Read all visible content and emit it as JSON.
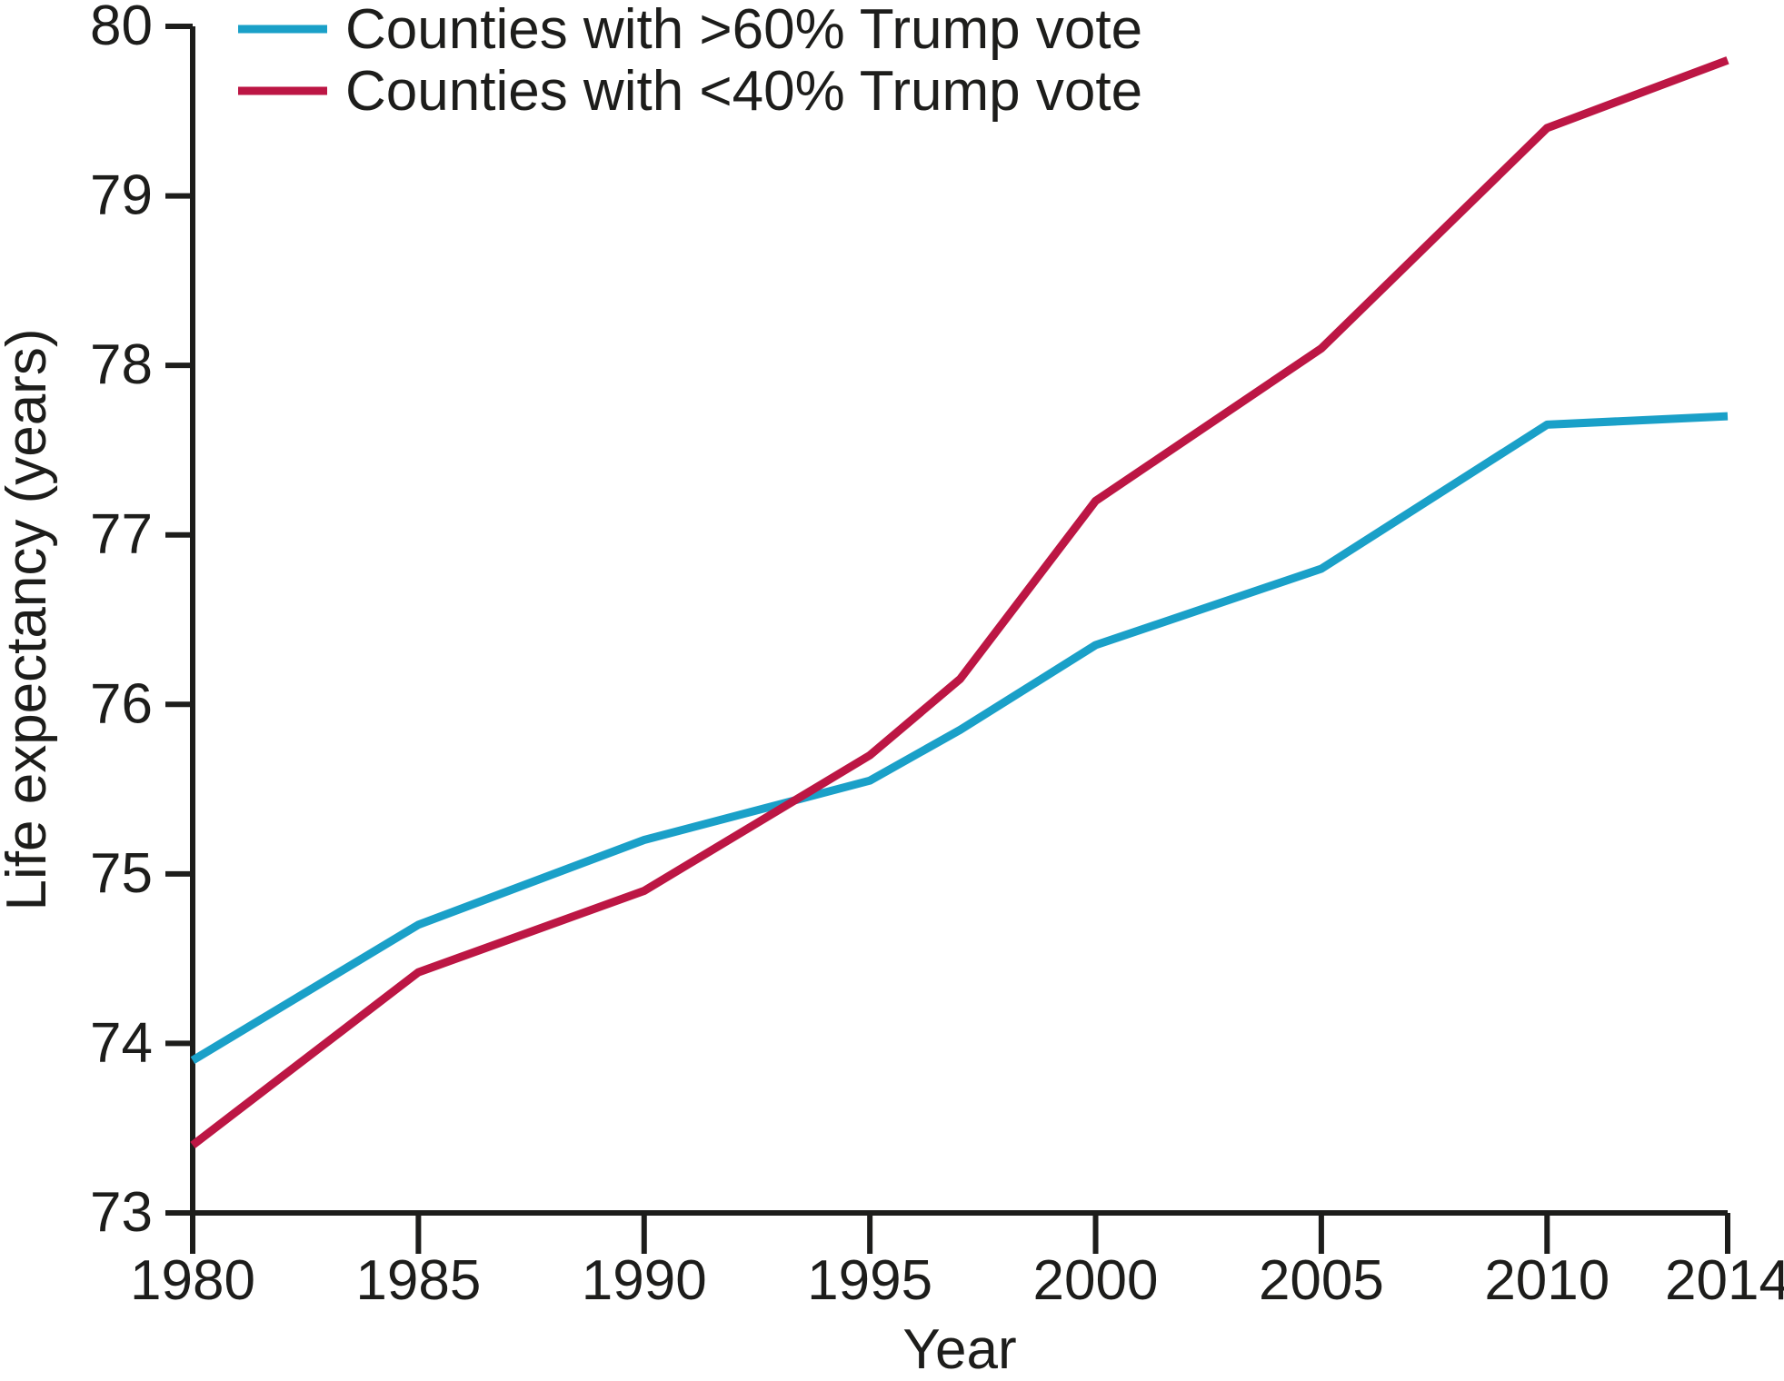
{
  "figure": {
    "background_color": "#ffffff",
    "text_color": "#1d1d1b",
    "axis_color": "#1d1d1b"
  },
  "chart_data": {
    "type": "line",
    "title": "",
    "xlabel": "Year",
    "ylabel": "Life expectancy (years)",
    "xlim": [
      1980,
      2014
    ],
    "ylim": [
      73,
      80
    ],
    "x_ticks": [
      1980,
      1985,
      1990,
      1995,
      2000,
      2005,
      2010,
      2014
    ],
    "y_ticks": [
      73,
      74,
      75,
      76,
      77,
      78,
      79,
      80
    ],
    "grid": false,
    "legend_position": "top-left",
    "x": [
      1980,
      1985,
      1990,
      1995,
      1997,
      2000,
      2005,
      2010,
      2014
    ],
    "series": [
      {
        "name": "Counties with >60% Trump vote",
        "color": "#1aa0c8",
        "values": [
          73.9,
          74.7,
          75.2,
          75.55,
          75.85,
          76.35,
          76.8,
          77.65,
          77.7
        ]
      },
      {
        "name": "Counties with <40% Trump vote",
        "color": "#bc1644",
        "values": [
          73.4,
          74.42,
          74.9,
          75.7,
          76.15,
          77.2,
          78.1,
          79.4,
          79.8
        ]
      }
    ]
  }
}
